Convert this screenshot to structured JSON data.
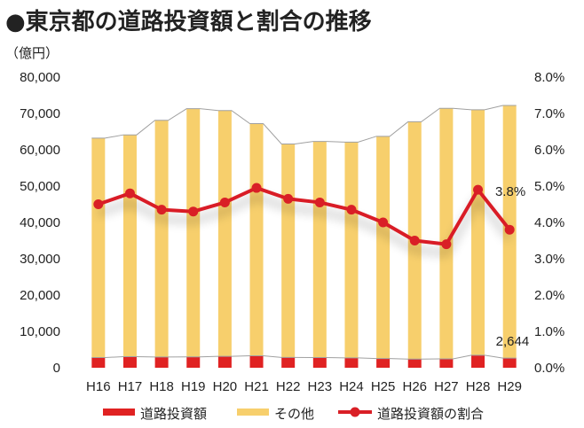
{
  "title": "●東京都の道路投資額と割合の推移",
  "unit_label": "（億円）",
  "chart_data": {
    "type": "bar",
    "stacked": true,
    "categories": [
      "H16",
      "H17",
      "H18",
      "H19",
      "H20",
      "H21",
      "H22",
      "H23",
      "H24",
      "H25",
      "H26",
      "H27",
      "H28",
      "H29"
    ],
    "series": [
      {
        "name": "道路投資額",
        "type": "bar",
        "axis": "left",
        "color": "#e02222",
        "values": [
          2800,
          3050,
          2950,
          3000,
          3150,
          3300,
          2850,
          2800,
          2700,
          2520,
          2380,
          2430,
          3450,
          2644
        ]
      },
      {
        "name": "その他",
        "type": "bar",
        "axis": "left",
        "color": "#f7cf6c",
        "values": [
          60400,
          61050,
          65150,
          68300,
          67650,
          63900,
          58750,
          59500,
          59400,
          61180,
          65320,
          68970,
          67550,
          69556
        ]
      },
      {
        "name": "道路投資額の割合",
        "type": "line",
        "axis": "right",
        "color": "#d91f26",
        "values": [
          4.5,
          4.8,
          4.35,
          4.3,
          4.55,
          4.95,
          4.65,
          4.55,
          4.35,
          4.0,
          3.5,
          3.4,
          4.9,
          3.8
        ]
      }
    ],
    "y_left": {
      "min": 0,
      "max": 80000,
      "step": 10000,
      "tick_labels": [
        "0",
        "10,000",
        "20,000",
        "30,000",
        "40,000",
        "50,000",
        "60,000",
        "70,000",
        "80,000"
      ]
    },
    "y_right": {
      "min": 0,
      "max": 8,
      "step": 1,
      "tick_labels": [
        "0.0%",
        "1.0%",
        "2.0%",
        "3.0%",
        "4.0%",
        "5.0%",
        "6.0%",
        "7.0%",
        "8.0%"
      ]
    },
    "annotations": [
      {
        "category": "H29",
        "series": "道路投資額の割合",
        "text": "3.8%"
      },
      {
        "category": "H29",
        "series": "道路投資額",
        "text": "2,644"
      }
    ],
    "total_line": {
      "color": "#a0a0a0"
    },
    "grid": false,
    "legend_position": "bottom"
  }
}
